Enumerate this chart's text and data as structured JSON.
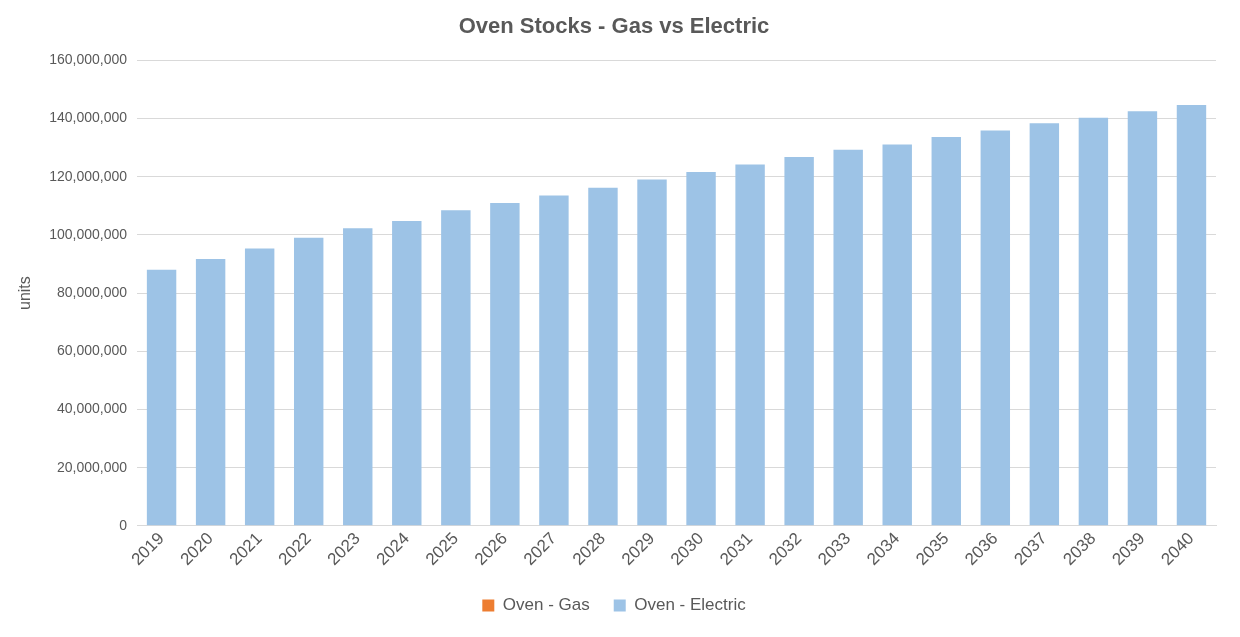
{
  "chart_data": {
    "type": "bar",
    "title": "Oven Stocks - Gas vs Electric",
    "ylabel": "units",
    "stacked": true,
    "grid": "y",
    "legend": "bottom",
    "categories": [
      "2019",
      "2020",
      "2021",
      "2022",
      "2023",
      "2024",
      "2025",
      "2026",
      "2027",
      "2028",
      "2029",
      "2030",
      "2031",
      "2032",
      "2033",
      "2034",
      "2035",
      "2036",
      "2037",
      "2038",
      "2039",
      "2040"
    ],
    "series": [
      {
        "name": "Oven - Gas",
        "color": "#ed7d31",
        "values": [
          0,
          0,
          0,
          0,
          0,
          0,
          0,
          0,
          0,
          0,
          0,
          0,
          0,
          0,
          0,
          0,
          0,
          0,
          0,
          0,
          0,
          0
        ]
      },
      {
        "name": "Oven - Electric",
        "color": "#9dc3e6",
        "values": [
          88000000,
          91700000,
          95300000,
          99000000,
          102300000,
          104800000,
          108500000,
          111000000,
          113600000,
          116200000,
          119100000,
          121600000,
          124200000,
          126800000,
          129300000,
          131100000,
          133700000,
          135900000,
          138400000,
          140300000,
          142500000,
          144700000
        ]
      }
    ],
    "ylim": [
      0,
      160000000
    ],
    "yticks": [
      {
        "value": 0,
        "label": "0"
      },
      {
        "value": 20000000,
        "label": "20,000,000"
      },
      {
        "value": 40000000,
        "label": "40,000,000"
      },
      {
        "value": 60000000,
        "label": "60,000,000"
      },
      {
        "value": 80000000,
        "label": "80,000,000"
      },
      {
        "value": 100000000,
        "label": "100,000,000"
      },
      {
        "value": 120000000,
        "label": "120,000,000"
      },
      {
        "value": 140000000,
        "label": "140,000,000"
      },
      {
        "value": 160000000,
        "label": "160,000,000"
      }
    ]
  }
}
